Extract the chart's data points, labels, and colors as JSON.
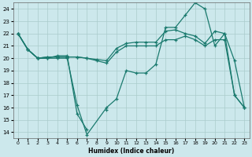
{
  "xlabel": "Humidex (Indice chaleur)",
  "background_color": "#cce8ec",
  "grid_color": "#aacccc",
  "line_color": "#1a7a6e",
  "xlim": [
    -0.5,
    23.5
  ],
  "ylim": [
    13.5,
    24.5
  ],
  "yticks": [
    14,
    15,
    16,
    17,
    18,
    19,
    20,
    21,
    22,
    23,
    24
  ],
  "xticks": [
    0,
    1,
    2,
    3,
    4,
    5,
    6,
    7,
    8,
    9,
    10,
    11,
    12,
    13,
    14,
    15,
    16,
    17,
    18,
    19,
    20,
    21,
    22,
    23
  ],
  "s0_x": [
    0,
    1,
    2,
    3,
    4,
    5,
    6,
    7,
    9,
    10,
    11,
    12,
    13,
    14,
    15,
    16,
    17,
    18,
    19,
    20,
    21,
    22,
    23
  ],
  "s0_y": [
    22,
    20.7,
    20,
    20,
    20,
    20,
    16.2,
    13.8,
    16,
    16.7,
    19,
    18.8,
    18.8,
    19.5,
    22.5,
    22.5,
    23.5,
    24.5,
    24.0,
    21.0,
    22.0,
    19.8,
    16.0
  ],
  "s1_x": [
    0,
    1,
    2,
    3,
    4,
    5,
    6,
    7,
    8,
    9,
    10,
    11,
    12,
    13,
    14,
    15,
    16,
    17,
    18,
    19,
    20,
    21,
    22,
    23
  ],
  "s1_y": [
    22,
    20.7,
    20.0,
    20.1,
    20.1,
    20.1,
    20.1,
    20.0,
    19.8,
    19.6,
    20.5,
    21.0,
    21.0,
    21.0,
    21.0,
    21.5,
    21.5,
    21.8,
    21.5,
    21.0,
    21.5,
    21.5,
    17.0,
    16.0
  ],
  "s2_x": [
    0,
    1,
    2,
    3,
    4,
    5,
    6,
    7,
    8,
    9,
    10,
    11,
    12,
    13,
    14,
    15,
    16,
    17,
    18,
    19,
    20,
    21,
    22,
    23
  ],
  "s2_y": [
    22,
    20.7,
    20.0,
    20.1,
    20.1,
    20.1,
    20.1,
    20.0,
    19.9,
    19.8,
    20.8,
    21.2,
    21.3,
    21.3,
    21.3,
    22.2,
    22.3,
    22.0,
    21.8,
    21.2,
    22.2,
    22.0,
    17.0,
    16.0
  ],
  "s3_x_a": [
    0,
    1,
    2,
    3,
    4,
    5,
    6,
    7
  ],
  "s3_y_a": [
    22,
    20.7,
    20,
    20,
    20.2,
    20.2,
    15.5,
    14.2
  ],
  "s3_x_b": [
    9
  ],
  "s3_y_b": [
    15.8
  ]
}
